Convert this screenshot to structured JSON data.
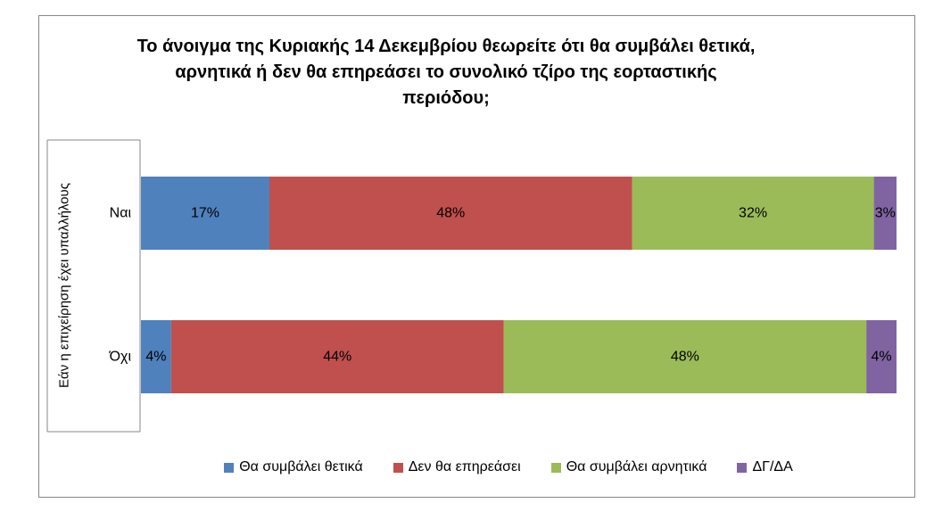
{
  "chart_data": {
    "type": "bar",
    "orientation": "horizontal",
    "stacked": true,
    "title": "Το άνοιγμα της Κυριακής 14 Δεκεμβρίου θεωρείτε ότι θα συμβάλει θετικά, αρνητικά ή δεν θα επηρεάσει το συνολικό τζίρο της εορταστικής περιόδου;",
    "ylabel": "Εάν η επιχείρηση έχει υπαλλήλους",
    "xlabel": "",
    "categories": [
      "Ναι",
      "Όχι"
    ],
    "series": [
      {
        "name": "Θα συμβάλει θετικά",
        "color": "#4F81BD",
        "values": [
          17,
          4
        ]
      },
      {
        "name": "Δεν θα επηρεάσει",
        "color": "#C0504D",
        "values": [
          48,
          44
        ]
      },
      {
        "name": "Θα συμβάλει αρνητικά",
        "color": "#9BBB59",
        "values": [
          32,
          48
        ]
      },
      {
        "name": "ΔΓ/ΔΑ",
        "color": "#8064A2",
        "values": [
          3,
          4
        ]
      }
    ],
    "value_suffix": "%",
    "legend_position": "bottom",
    "grid": false
  }
}
